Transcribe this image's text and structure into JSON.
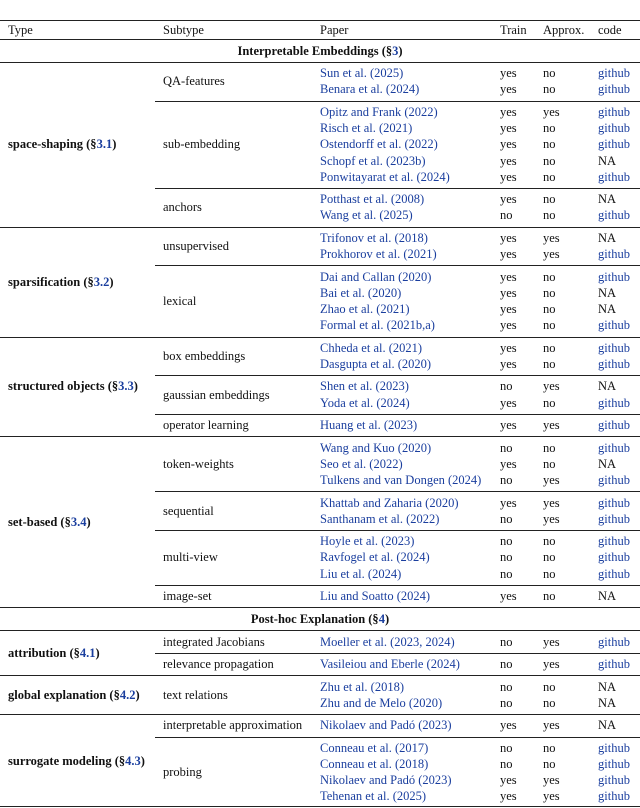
{
  "header": [
    "Type",
    "Subtype",
    "Paper",
    "Train",
    "Approx.",
    "code"
  ],
  "sections": [
    {
      "title": [
        "Interpretable Embeddings (§",
        "3",
        ")"
      ],
      "groups": [
        {
          "type": [
            "space-shaping (§",
            "3.1",
            ")"
          ],
          "subgroups": [
            {
              "subtype": "QA-features",
              "rows": [
                [
                  "Sun et al. (2025)",
                  "yes",
                  "no",
                  "github"
                ],
                [
                  "Benara et al. (2024)",
                  "yes",
                  "no",
                  "github"
                ]
              ]
            },
            {
              "subtype": "sub-embedding",
              "rows": [
                [
                  "Opitz and Frank (2022)",
                  "yes",
                  "yes",
                  "github"
                ],
                [
                  "Risch et al. (2021)",
                  "yes",
                  "no",
                  "github"
                ],
                [
                  "Ostendorff et al. (2022)",
                  "yes",
                  "no",
                  "github"
                ],
                [
                  "Schopf et al. (2023b)",
                  "yes",
                  "no",
                  "NA"
                ],
                [
                  "Ponwitayarat et al. (2024)",
                  "yes",
                  "no",
                  "github"
                ]
              ]
            },
            {
              "subtype": "anchors",
              "rows": [
                [
                  "Potthast et al. (2008)",
                  "yes",
                  "no",
                  "NA"
                ],
                [
                  "Wang et al. (2025)",
                  "no",
                  "no",
                  "github"
                ]
              ]
            }
          ]
        },
        {
          "type": [
            "sparsification (§",
            "3.2",
            ")"
          ],
          "subgroups": [
            {
              "subtype": "unsupervised",
              "rows": [
                [
                  "Trifonov et al. (2018)",
                  "yes",
                  "yes",
                  "NA"
                ],
                [
                  "Prokhorov et al. (2021)",
                  "yes",
                  "yes",
                  "github"
                ]
              ]
            },
            {
              "subtype": "lexical",
              "rows": [
                [
                  "Dai and Callan (2020)",
                  "yes",
                  "no",
                  "github"
                ],
                [
                  "Bai et al. (2020)",
                  "yes",
                  "no",
                  "NA"
                ],
                [
                  "Zhao et al. (2021)",
                  "yes",
                  "no",
                  "NA"
                ],
                [
                  "Formal et al. (2021b,a)",
                  "yes",
                  "no",
                  "github"
                ]
              ]
            }
          ]
        },
        {
          "type": [
            "structured objects (§",
            "3.3",
            ")"
          ],
          "subgroups": [
            {
              "subtype": "box embeddings",
              "rows": [
                [
                  "Chheda et al. (2021)",
                  "yes",
                  "no",
                  "github"
                ],
                [
                  "Dasgupta et al. (2020)",
                  "yes",
                  "no",
                  "github"
                ]
              ]
            },
            {
              "subtype": "gaussian embeddings",
              "rows": [
                [
                  "Shen et al. (2023)",
                  "no",
                  "yes",
                  "NA"
                ],
                [
                  "Yoda et al. (2024)",
                  "yes",
                  "no",
                  "github"
                ]
              ]
            },
            {
              "subtype": "operator learning",
              "rows": [
                [
                  "Huang et al. (2023)",
                  "yes",
                  "yes",
                  "github"
                ]
              ]
            }
          ]
        },
        {
          "type": [
            "set-based (§",
            "3.4",
            ")"
          ],
          "subgroups": [
            {
              "subtype": "token-weights",
              "rows": [
                [
                  "Wang and Kuo (2020)",
                  "no",
                  "no",
                  "github"
                ],
                [
                  "Seo et al. (2022)",
                  "yes",
                  "no",
                  "NA"
                ],
                [
                  "Tulkens and van Dongen (2024)",
                  "no",
                  "yes",
                  "github"
                ]
              ]
            },
            {
              "subtype": "sequential",
              "rows": [
                [
                  "Khattab and Zaharia (2020)",
                  "yes",
                  "yes",
                  "github"
                ],
                [
                  "Santhanam et al. (2022)",
                  "no",
                  "yes",
                  "github"
                ]
              ]
            },
            {
              "subtype": "multi-view",
              "rows": [
                [
                  "Hoyle et al. (2023)",
                  "no",
                  "no",
                  "github"
                ],
                [
                  "Ravfogel et al. (2024)",
                  "no",
                  "no",
                  "github"
                ],
                [
                  "Liu et al. (2024)",
                  "no",
                  "no",
                  "github"
                ]
              ]
            },
            {
              "subtype": "image-set",
              "rows": [
                [
                  "Liu and Soatto (2024)",
                  "yes",
                  "no",
                  "NA"
                ]
              ]
            }
          ]
        }
      ]
    },
    {
      "title": [
        "Post-hoc Explanation (§",
        "4",
        ")"
      ],
      "groups": [
        {
          "type": [
            "attribution (§",
            "4.1",
            ")"
          ],
          "subgroups": [
            {
              "subtype": "integrated Jacobians",
              "rows": [
                [
                  "Moeller et al. (2023, 2024)",
                  "no",
                  "yes",
                  "github"
                ]
              ]
            },
            {
              "subtype": "relevance propagation",
              "rows": [
                [
                  "Vasileiou and Eberle (2024)",
                  "no",
                  "yes",
                  "github"
                ]
              ]
            }
          ]
        },
        {
          "type": [
            "global explanation (§",
            "4.2",
            ")"
          ],
          "subgroups": [
            {
              "subtype": "text relations",
              "rows": [
                [
                  "Zhu et al. (2018)",
                  "no",
                  "no",
                  "NA"
                ],
                [
                  "Zhu and de Melo (2020)",
                  "no",
                  "no",
                  "NA"
                ]
              ]
            }
          ]
        },
        {
          "type": [
            "surrogate modeling (§",
            "4.3",
            ")"
          ],
          "subgroups": [
            {
              "subtype": "interpretable approximation",
              "rows": [
                [
                  "Nikolaev and Padó (2023)",
                  "yes",
                  "yes",
                  "NA"
                ]
              ]
            },
            {
              "subtype": "probing",
              "rows": [
                [
                  "Conneau et al. (2017)",
                  "no",
                  "no",
                  "github"
                ],
                [
                  "Conneau et al. (2018)",
                  "no",
                  "no",
                  "github"
                ],
                [
                  "Nikolaev and Padó (2023)",
                  "yes",
                  "yes",
                  "github"
                ],
                [
                  "Tehenan et al. (2025)",
                  "yes",
                  "yes",
                  "github"
                ]
              ]
            }
          ]
        }
      ]
    }
  ]
}
